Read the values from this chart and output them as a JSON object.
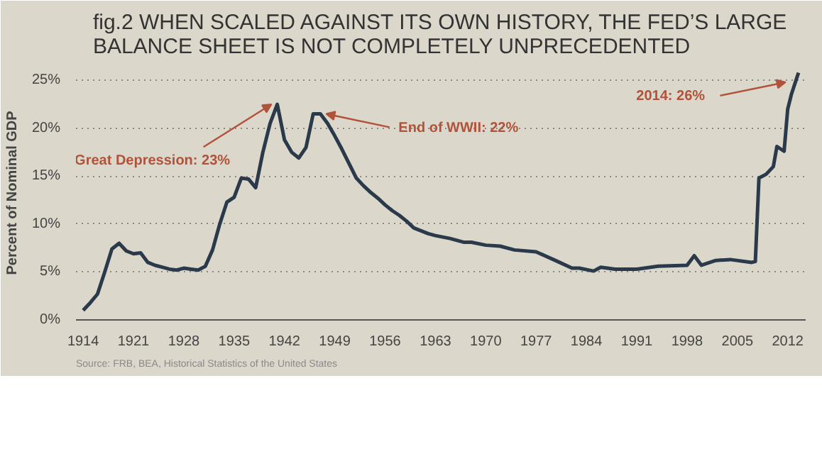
{
  "chart_data": {
    "type": "line",
    "title": "fig.2 WHEN SCALED AGAINST ITS OWN HISTORY, THE FED’S LARGE\nBALANCE SHEET IS NOT COMPLETELY UNPRECEDENTED",
    "ylabel": "Percent of Nominal GDP",
    "x": [
      1914,
      1915,
      1916,
      1917,
      1918,
      1919,
      1920,
      1921,
      1922,
      1923,
      1924,
      1925,
      1926,
      1927,
      1928,
      1929,
      1930,
      1931,
      1932,
      1933,
      1934,
      1935,
      1936,
      1937,
      1938,
      1939,
      1940,
      1941,
      1942,
      1943,
      1944,
      1945,
      1946,
      1947,
      1948,
      1949,
      1950,
      1951,
      1952,
      1953,
      1954,
      1955,
      1956,
      1957,
      1958,
      1959,
      1960,
      1961,
      1962,
      1963,
      1965,
      1967,
      1968,
      1970,
      1972,
      1974,
      1977,
      1980,
      1982,
      1983,
      1985,
      1986,
      1988,
      1991,
      1994,
      1998,
      1999,
      2000,
      2002,
      2004,
      2007,
      2007.5,
      2008,
      2009,
      2010,
      2010.5,
      2011.5,
      2012,
      2012.5,
      2013.5
    ],
    "series": [
      {
        "color": "#2b3a4a",
        "values": [
          1.0,
          1.8,
          2.7,
          5.0,
          7.4,
          8.0,
          7.2,
          6.9,
          7.0,
          6.0,
          5.7,
          5.5,
          5.3,
          5.2,
          5.4,
          5.3,
          5.2,
          5.6,
          7.3,
          10.0,
          12.3,
          12.8,
          14.8,
          14.7,
          13.8,
          17.5,
          20.5,
          22.5,
          18.8,
          17.5,
          16.9,
          18.0,
          21.5,
          21.5,
          20.5,
          19.2,
          17.8,
          16.3,
          14.8,
          14.0,
          13.3,
          12.7,
          12.0,
          11.4,
          10.9,
          10.3,
          9.6,
          9.3,
          9.0,
          8.8,
          8.5,
          8.1,
          8.1,
          7.8,
          7.7,
          7.3,
          7.1,
          6.1,
          5.4,
          5.4,
          5.1,
          5.5,
          5.3,
          5.3,
          5.6,
          5.7,
          6.7,
          5.7,
          6.2,
          6.3,
          6.0,
          6.1,
          14.8,
          15.2,
          16.0,
          18.1,
          17.6,
          22.0,
          23.5,
          25.8
        ]
      }
    ],
    "xlim": [
      1913,
      2014.5
    ],
    "ylim": [
      0,
      26.5
    ],
    "xticks": [
      1914,
      1921,
      1928,
      1935,
      1942,
      1949,
      1956,
      1963,
      1970,
      1977,
      1984,
      1991,
      1998,
      2005,
      2012
    ],
    "yticks": [
      {
        "value": 0,
        "label": "0%"
      },
      {
        "value": 5,
        "label": "5%"
      },
      {
        "value": 10,
        "label": "10%"
      },
      {
        "value": 15,
        "label": "15%"
      },
      {
        "value": 20,
        "label": "20%"
      },
      {
        "value": 25,
        "label": "25%"
      }
    ],
    "grid": "y",
    "line_style": "solid",
    "annotations": [
      {
        "text": "Great Depression: 23%",
        "x": 1941,
        "y": 22.5
      },
      {
        "text": "End of WWII: 22%",
        "x": 1947,
        "y": 21.5
      },
      {
        "text": "2014: 26%",
        "x": 2012.5,
        "y": 24.8
      },
      "Source: FRB, BEA, Historical Statistics of the United States"
    ]
  }
}
